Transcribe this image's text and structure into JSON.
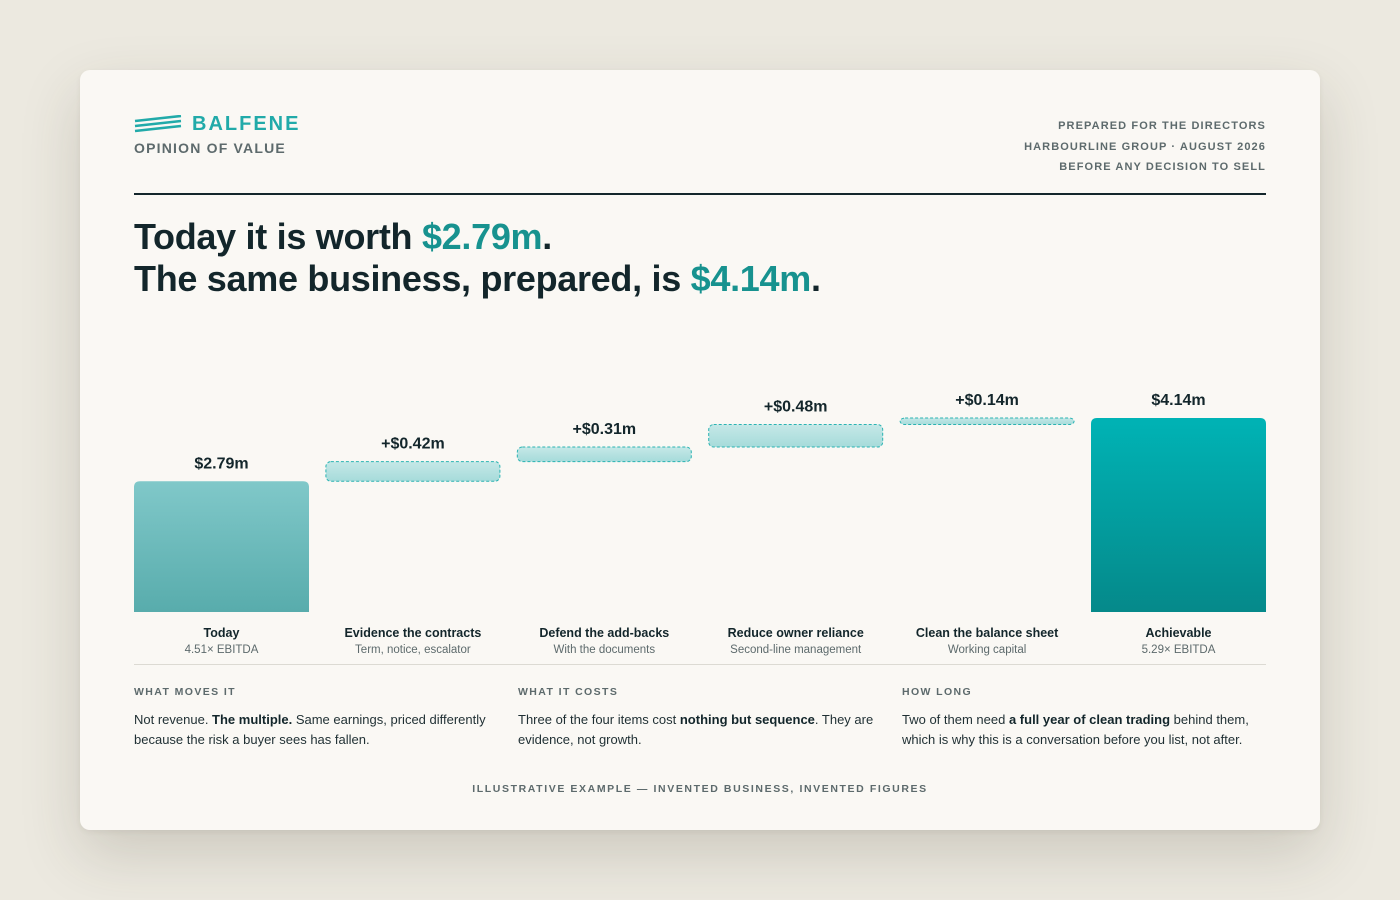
{
  "brand": {
    "name": "BALFENE",
    "subtitle": "OPINION OF VALUE",
    "accent_color": "#21aaa9"
  },
  "meta": {
    "line1": "PREPARED FOR THE DIRECTORS",
    "line2": "HARBOURLINE GROUP · AUGUST 2026",
    "line3": "BEFORE ANY DECISION TO SELL"
  },
  "headline": {
    "line1_prefix": "Today it is worth ",
    "line1_value": "$2.79m",
    "line1_suffix": ".",
    "line2_prefix": "The same business, prepared, is ",
    "line2_value": "$4.14m",
    "line2_suffix": "."
  },
  "chart_data": {
    "type": "bar",
    "subtype": "waterfall",
    "ylim": [
      0,
      4.14
    ],
    "grid": false,
    "unit": "$m",
    "categories": [
      "Today",
      "Evidence the contracts",
      "Defend the add-backs",
      "Reduce owner reliance",
      "Clean the balance sheet",
      "Achievable"
    ],
    "sublabels": [
      "4.51× EBITDA",
      "Term, notice, escalator",
      "With the documents",
      "Second-line management",
      "Working capital",
      "5.29× EBITDA"
    ],
    "values": [
      2.79,
      0.42,
      0.31,
      0.48,
      0.14,
      4.14
    ],
    "kinds": [
      "total",
      "step",
      "step",
      "step",
      "step",
      "total"
    ],
    "value_labels": [
      "$2.79m",
      "+$0.42m",
      "+$0.31m",
      "+$0.48m",
      "+$0.14m",
      "$4.14m"
    ],
    "colors": {
      "today_top": "#80c8c9",
      "today_bottom": "#58acac",
      "achievable_top": "#00b3b5",
      "achievable_bottom": "#05898a",
      "step_fill_top": "#c5e8e7",
      "step_fill_bottom": "#a6dbda",
      "step_border": "#2ab3b2"
    }
  },
  "columns": [
    {
      "heading": "WHAT MOVES IT",
      "t1": "Not revenue. ",
      "b1": "The multiple.",
      "t2": " Same earnings, priced differently because the risk a buyer sees has fallen."
    },
    {
      "heading": "WHAT IT COSTS",
      "t1": "Three of the four items cost ",
      "b1": "nothing but sequence",
      "t2": ". They are evidence, not growth."
    },
    {
      "heading": "HOW LONG",
      "t1": "Two of them need ",
      "b1": "a full year of clean trading",
      "t2": " behind them, which is why this is a conversation before you list, not after."
    }
  ],
  "footer": "ILLUSTRATIVE EXAMPLE — INVENTED BUSINESS, INVENTED FIGURES"
}
